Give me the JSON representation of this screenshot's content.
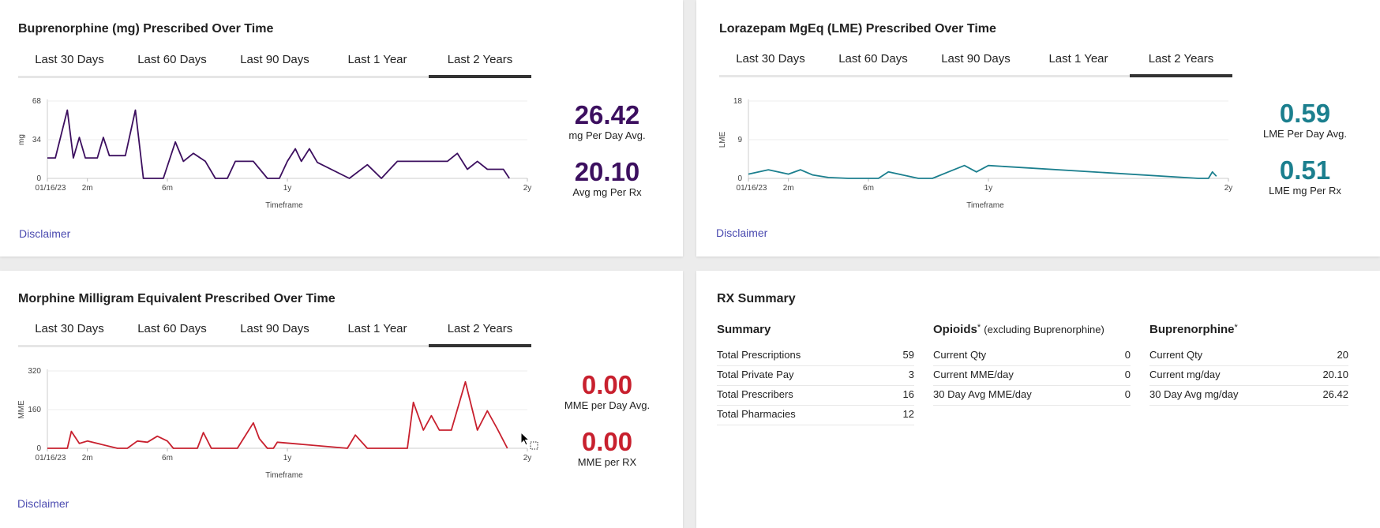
{
  "tabs": [
    "Last 30 Days",
    "Last 60 Days",
    "Last 90 Days",
    "Last 1 Year",
    "Last 2 Years"
  ],
  "active_tab_index": 4,
  "disclaimer_label": "Disclaimer",
  "bup": {
    "title": "Buprenorphine (mg) Prescribed Over Time",
    "stat1": {
      "value": "26.42",
      "label": "mg Per Day Avg.",
      "color": "#3c0f5f"
    },
    "stat2": {
      "value": "20.10",
      "label": "Avg mg Per Rx",
      "color": "#3c0f5f"
    }
  },
  "lme": {
    "title": "Lorazepam MgEq (LME) Prescribed Over Time",
    "stat1": {
      "value": "0.59",
      "label": "LME Per Day Avg.",
      "color": "#1b7f8e"
    },
    "stat2": {
      "value": "0.51",
      "label": "LME mg Per Rx",
      "color": "#1b7f8e"
    }
  },
  "mme": {
    "title": "Morphine Milligram Equivalent Prescribed Over Time",
    "stat1": {
      "value": "0.00",
      "label": "MME per Day Avg.",
      "color": "#c8202e"
    },
    "stat2": {
      "value": "0.00",
      "label": "MME per RX",
      "color": "#c8202e"
    }
  },
  "chart_data": [
    {
      "type": "line",
      "title": "",
      "xlabel": "Timeframe",
      "ylabel": "mg",
      "ylim": [
        0,
        68
      ],
      "yticks": [
        0,
        34,
        68
      ],
      "x_ticks": [
        {
          "x": 0,
          "label": "01/16/23"
        },
        {
          "x": 2,
          "label": "2m"
        },
        {
          "x": 6,
          "label": "6m"
        },
        {
          "x": 12,
          "label": "1y"
        },
        {
          "x": 24,
          "label": "2y"
        }
      ],
      "xlim": [
        0,
        24
      ],
      "color": "#3c0f5f",
      "series": [
        {
          "x": [
            0,
            0.4,
            1.0,
            1.3,
            1.6,
            1.9,
            2.2,
            2.5,
            2.8,
            3.1,
            3.4,
            3.6,
            3.9,
            4.4,
            4.8,
            5.4,
            5.8,
            6.4,
            6.8,
            7.3,
            7.9,
            8.4,
            9.0,
            9.4,
            9.8,
            10.3,
            11.0,
            11.6,
            12.0,
            12.4,
            12.7,
            13.1,
            13.5,
            15.1,
            16.0,
            16.7,
            17.5,
            19.0,
            20.0,
            20.5,
            21.0,
            21.5,
            22.0,
            22.5,
            22.8,
            23.1
          ],
          "y": [
            18,
            18,
            60,
            18,
            36,
            18,
            18,
            18,
            36,
            20,
            20,
            20,
            20,
            60,
            0,
            0,
            0,
            32,
            15,
            22,
            15,
            0,
            0,
            15,
            15,
            15,
            0,
            0,
            15,
            26,
            15,
            26,
            14,
            0,
            12,
            0,
            15,
            15,
            15,
            22,
            8,
            15,
            8,
            8,
            8,
            0
          ]
        }
      ]
    },
    {
      "type": "line",
      "title": "",
      "xlabel": "Timeframe",
      "ylabel": "LME",
      "ylim": [
        0,
        18
      ],
      "yticks": [
        0,
        9,
        18
      ],
      "x_ticks": [
        {
          "x": 0,
          "label": "01/16/23"
        },
        {
          "x": 2,
          "label": "2m"
        },
        {
          "x": 6,
          "label": "6m"
        },
        {
          "x": 12,
          "label": "1y"
        },
        {
          "x": 24,
          "label": "2y"
        }
      ],
      "xlim": [
        0,
        24
      ],
      "color": "#1b7f8e",
      "series": [
        {
          "x": [
            0,
            1.0,
            2.0,
            2.6,
            3.2,
            4.0,
            5.0,
            6.5,
            7.0,
            8.0,
            8.5,
            9.2,
            10.0,
            10.8,
            11.4,
            12.0,
            22.5,
            23.0,
            23.2,
            23.4
          ],
          "y": [
            1,
            2,
            1,
            2,
            0.8,
            0.2,
            0,
            0,
            1.5,
            0.5,
            0,
            0,
            1.5,
            3,
            1.5,
            3,
            0,
            0,
            1.5,
            0.5
          ]
        }
      ]
    },
    {
      "type": "line",
      "title": "",
      "xlabel": "Timeframe",
      "ylabel": "MME",
      "ylim": [
        0,
        320
      ],
      "yticks": [
        0,
        160,
        320
      ],
      "x_ticks": [
        {
          "x": 0,
          "label": "01/16/23"
        },
        {
          "x": 2,
          "label": "2m"
        },
        {
          "x": 6,
          "label": "6m"
        },
        {
          "x": 12,
          "label": "1y"
        },
        {
          "x": 24,
          "label": "2y"
        }
      ],
      "xlim": [
        0,
        24
      ],
      "color": "#c8202e",
      "series": [
        {
          "x": [
            0,
            0.5,
            1.0,
            1.2,
            1.6,
            2.0,
            3.5,
            4.0,
            4.5,
            5.0,
            5.5,
            6.0,
            6.3,
            6.8,
            7.5,
            7.8,
            8.2,
            9.0,
            9.5,
            10.3,
            10.6,
            11.0,
            11.3,
            11.5,
            15.0,
            15.4,
            16.0,
            18.0,
            18.3,
            18.8,
            19.2,
            19.6,
            20.2,
            20.9,
            21.5,
            22.0,
            22.5,
            23.0
          ],
          "y": [
            0,
            0,
            0,
            70,
            20,
            30,
            0,
            0,
            30,
            25,
            50,
            30,
            0,
            0,
            0,
            65,
            0,
            0,
            0,
            105,
            40,
            0,
            0,
            25,
            0,
            55,
            0,
            0,
            190,
            75,
            135,
            75,
            75,
            275,
            75,
            155,
            80,
            0
          ]
        }
      ]
    }
  ],
  "rx": {
    "title": "RX Summary",
    "summary": {
      "heading": "Summary",
      "rows": [
        {
          "label": "Total Prescriptions",
          "value": "59"
        },
        {
          "label": "Total Private Pay",
          "value": "3"
        },
        {
          "label": "Total Prescribers",
          "value": "16"
        },
        {
          "label": "Total Pharmacies",
          "value": "12"
        }
      ]
    },
    "opioids": {
      "heading": "Opioids",
      "star": "*",
      "sub": "(excluding Buprenorphine)",
      "rows": [
        {
          "label": "Current Qty",
          "value": "0"
        },
        {
          "label": "Current MME/day",
          "value": "0"
        },
        {
          "label": "30 Day Avg MME/day",
          "value": "0"
        }
      ]
    },
    "bup": {
      "heading": "Buprenorphine",
      "star": "*",
      "rows": [
        {
          "label": "Current Qty",
          "value": "20"
        },
        {
          "label": "Current mg/day",
          "value": "20.10"
        },
        {
          "label": "30 Day Avg mg/day",
          "value": "26.42"
        }
      ]
    }
  }
}
